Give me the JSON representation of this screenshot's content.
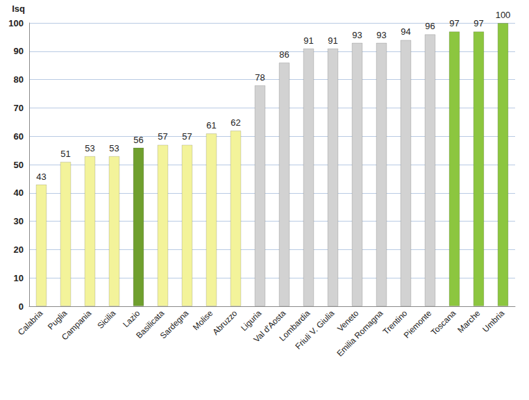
{
  "chart_data": {
    "type": "bar",
    "ylabel": "Isq",
    "categories": [
      "Calabria",
      "Puglia",
      "Campania",
      "Sicilia",
      "Lazio",
      "Basilicata",
      "Sardegna",
      "Molise",
      "Abruzzo",
      "Liguria",
      "Val d'Aosta",
      "Lombardia",
      "Friuli V. Giulia",
      "Veneto",
      "Emilia Romagna",
      "Trentino",
      "Piemonte",
      "Toscana",
      "Marche",
      "Umbria"
    ],
    "values": [
      43,
      51,
      53,
      53,
      56,
      57,
      57,
      61,
      62,
      78,
      86,
      91,
      91,
      93,
      93,
      94,
      96,
      97,
      97,
      100
    ],
    "colors": [
      "#f3f39a",
      "#f3f39a",
      "#f3f39a",
      "#f3f39a",
      "#6f9f2e",
      "#f3f39a",
      "#f3f39a",
      "#f3f39a",
      "#f3f39a",
      "#d2d2d2",
      "#d2d2d2",
      "#d2d2d2",
      "#d2d2d2",
      "#d2d2d2",
      "#d2d2d2",
      "#d2d2d2",
      "#d2d2d2",
      "#8cc63f",
      "#8cc63f",
      "#8cc63f"
    ],
    "ylim": [
      0,
      100
    ],
    "yticks": [
      0,
      10,
      20,
      30,
      40,
      50,
      60,
      70,
      80,
      90,
      100
    ],
    "grid": true,
    "data_labels": true
  }
}
